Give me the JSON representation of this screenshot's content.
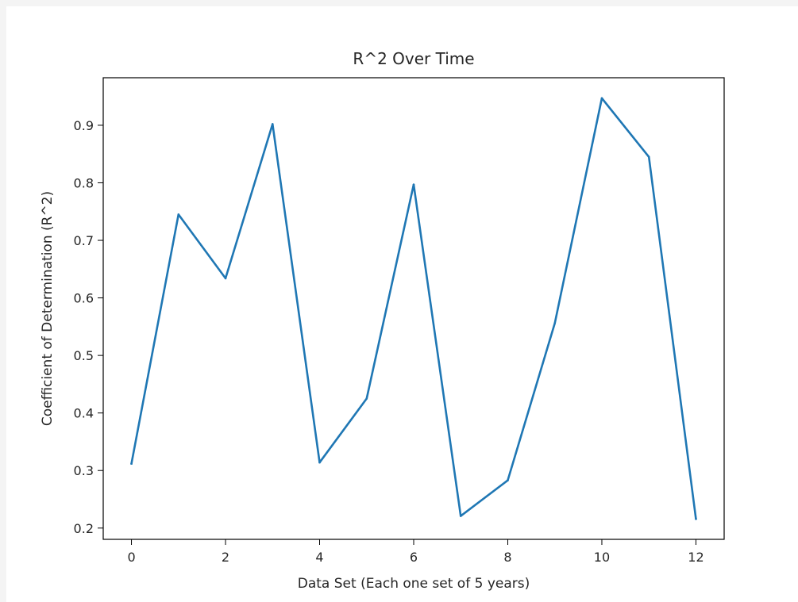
{
  "chart_data": {
    "type": "line",
    "title": "R^2 Over Time",
    "xlabel": "Data Set (Each one set of 5 years)",
    "ylabel": "Coefficient of Determination (R^2)",
    "x": [
      0,
      1,
      2,
      3,
      4,
      5,
      6,
      7,
      8,
      9,
      10,
      11,
      12
    ],
    "series": [
      {
        "values": [
          0.312,
          0.745,
          0.634,
          0.902,
          0.314,
          0.425,
          0.797,
          0.221,
          0.283,
          0.556,
          0.947,
          0.845,
          0.216
        ],
        "color": "#1f77b4"
      }
    ],
    "xlim": [
      -0.6,
      12.6
    ],
    "ylim": [
      0.1804,
      0.9826
    ],
    "xticks": [
      0,
      2,
      4,
      6,
      8,
      10,
      12
    ],
    "xtick_labels": [
      "0",
      "2",
      "4",
      "6",
      "8",
      "10",
      "12"
    ],
    "yticks": [
      0.2,
      0.3,
      0.4,
      0.5,
      0.6,
      0.7,
      0.8,
      0.9
    ],
    "ytick_labels": [
      "0.2",
      "0.3",
      "0.4",
      "0.5",
      "0.6",
      "0.7",
      "0.8",
      "0.9"
    ],
    "grid": false,
    "legend": "none"
  }
}
